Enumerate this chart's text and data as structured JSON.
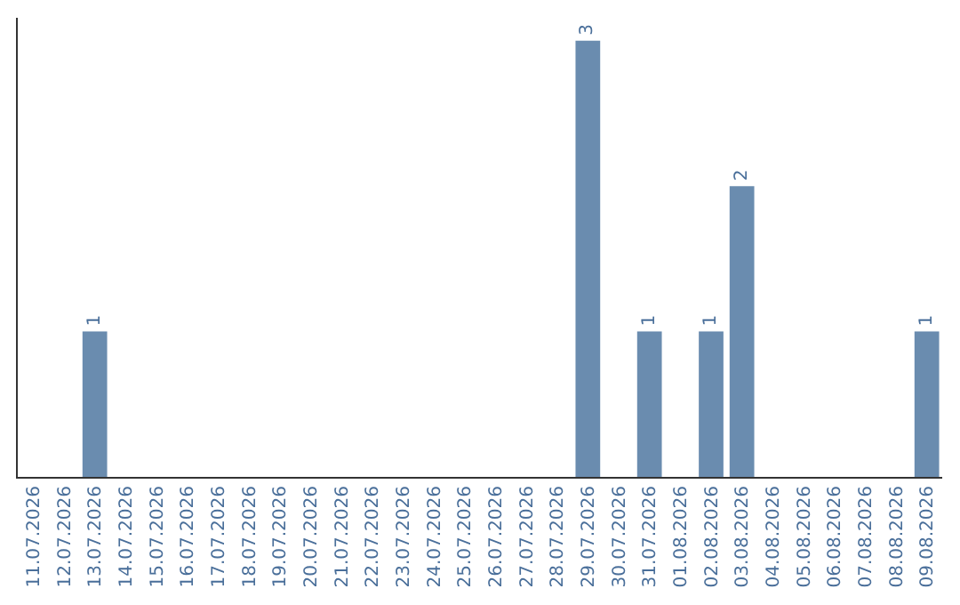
{
  "chart_data": {
    "type": "bar",
    "categories": [
      "11.07.2026",
      "12.07.2026",
      "13.07.2026",
      "14.07.2026",
      "15.07.2026",
      "16.07.2026",
      "17.07.2026",
      "18.07.2026",
      "19.07.2026",
      "20.07.2026",
      "21.07.2026",
      "22.07.2026",
      "23.07.2026",
      "24.07.2026",
      "25.07.2026",
      "26.07.2026",
      "27.07.2026",
      "28.07.2026",
      "29.07.2026",
      "30.07.2026",
      "31.07.2026",
      "01.08.2026",
      "02.08.2026",
      "03.08.2026",
      "04.08.2026",
      "05.08.2026",
      "06.08.2026",
      "07.08.2026",
      "08.08.2026",
      "09.08.2026"
    ],
    "values": [
      0,
      0,
      1,
      0,
      0,
      0,
      0,
      0,
      0,
      0,
      0,
      0,
      0,
      0,
      0,
      0,
      0,
      0,
      3,
      0,
      1,
      0,
      1,
      2,
      0,
      0,
      0,
      0,
      0,
      1
    ],
    "value_labels": [
      null,
      null,
      "1",
      null,
      null,
      null,
      null,
      null,
      null,
      null,
      null,
      null,
      null,
      null,
      null,
      null,
      null,
      null,
      "3",
      null,
      "1",
      null,
      "1",
      "2",
      null,
      null,
      null,
      null,
      null,
      "1"
    ],
    "color": "#6a8caf",
    "tick_labels": "x"
  }
}
